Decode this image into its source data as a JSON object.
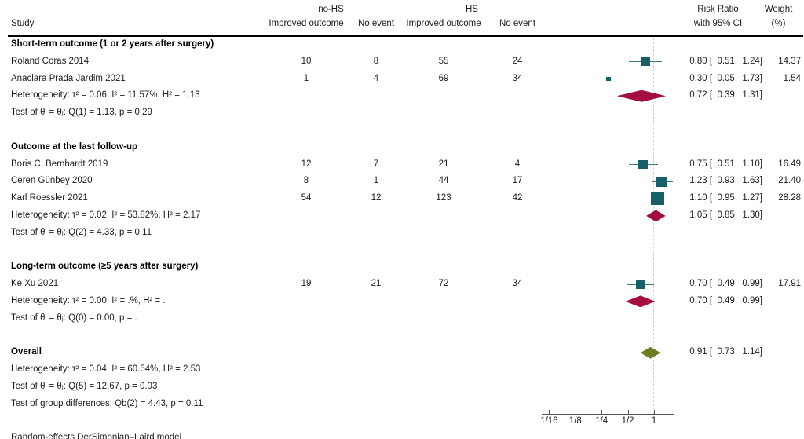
{
  "header": {
    "study": "Study",
    "group1": "no-HS",
    "group2": "HS",
    "col_improved_1": "Improved outcome",
    "col_noevent_1": "No event",
    "col_improved_2": "Improved outcome",
    "col_noevent_2": "No event",
    "rr_line1": "Risk Ratio",
    "rr_line2": "with 95% CI",
    "weight_line1": "Weight",
    "weight_line2": "(%)"
  },
  "rows": [
    {
      "kind": "group",
      "study": "Short-term outcome (1 or 2 years after surgery)",
      "c1": "",
      "c2": "",
      "c3": "",
      "c4": "",
      "rr": "",
      "wt": ""
    },
    {
      "kind": "study",
      "study": "Roland Coras 2014",
      "c1": "10",
      "c2": "8",
      "c3": "55",
      "c4": "24",
      "rr": "0.80 [  0.51,  1.24]",
      "wt": "14.37"
    },
    {
      "kind": "study",
      "study": "Anaclara Prada Jardim 2021",
      "c1": "1",
      "c2": "4",
      "c3": "69",
      "c4": "34",
      "rr": "0.30 [  0.05,  1.73]",
      "wt": "1.54"
    },
    {
      "kind": "stat",
      "study": "Heterogeneity: τ² = 0.06, I² = 11.57%, H² = 1.13",
      "c1": "",
      "c2": "",
      "c3": "",
      "c4": "",
      "rr": "0.72 [  0.39,  1.31]",
      "wt": ""
    },
    {
      "kind": "stat",
      "study": "Test of θᵢ = θⱼ: Q(1) = 1.13, p = 0.29",
      "c1": "",
      "c2": "",
      "c3": "",
      "c4": "",
      "rr": "",
      "wt": ""
    },
    {
      "kind": "blank",
      "study": "",
      "c1": "",
      "c2": "",
      "c3": "",
      "c4": "",
      "rr": "",
      "wt": ""
    },
    {
      "kind": "group",
      "study": "Outcome at the last follow-up",
      "c1": "",
      "c2": "",
      "c3": "",
      "c4": "",
      "rr": "",
      "wt": ""
    },
    {
      "kind": "study",
      "study": "Boris C. Bernhardt 2019",
      "c1": "12",
      "c2": "7",
      "c3": "21",
      "c4": "4",
      "rr": "0.75 [  0.51,  1.10]",
      "wt": "16.49"
    },
    {
      "kind": "study",
      "study": "Ceren Günbey 2020",
      "c1": "8",
      "c2": "1",
      "c3": "44",
      "c4": "17",
      "rr": "1.23 [  0.93,  1.63]",
      "wt": "21.40"
    },
    {
      "kind": "study",
      "study": "Karl Roessler 2021",
      "c1": "54",
      "c2": "12",
      "c3": "123",
      "c4": "42",
      "rr": "1.10 [  0.95,  1.27]",
      "wt": "28.28"
    },
    {
      "kind": "stat",
      "study": "Heterogeneity: τ² = 0.02, I² = 53.82%, H² = 2.17",
      "c1": "",
      "c2": "",
      "c3": "",
      "c4": "",
      "rr": "1.05 [  0.85,  1.30]",
      "wt": ""
    },
    {
      "kind": "stat",
      "study": "Test of θᵢ = θⱼ: Q(2) = 4.33, p = 0.11",
      "c1": "",
      "c2": "",
      "c3": "",
      "c4": "",
      "rr": "",
      "wt": ""
    },
    {
      "kind": "blank",
      "study": "",
      "c1": "",
      "c2": "",
      "c3": "",
      "c4": "",
      "rr": "",
      "wt": ""
    },
    {
      "kind": "group",
      "study": "Long-term outcome (≥5 years after surgery)",
      "c1": "",
      "c2": "",
      "c3": "",
      "c4": "",
      "rr": "",
      "wt": ""
    },
    {
      "kind": "study",
      "study": "Ke Xu 2021",
      "c1": "19",
      "c2": "21",
      "c3": "72",
      "c4": "34",
      "rr": "0.70 [  0.49,  0.99]",
      "wt": "17.91"
    },
    {
      "kind": "stat",
      "study": "Heterogeneity: τ² = 0.00, I² = .%, H² = .",
      "c1": "",
      "c2": "",
      "c3": "",
      "c4": "",
      "rr": "0.70 [  0.49,  0.99]",
      "wt": ""
    },
    {
      "kind": "stat",
      "study": "Test of θᵢ = θⱼ: Q(0) = 0.00, p = .",
      "c1": "",
      "c2": "",
      "c3": "",
      "c4": "",
      "rr": "",
      "wt": ""
    },
    {
      "kind": "blank",
      "study": "",
      "c1": "",
      "c2": "",
      "c3": "",
      "c4": "",
      "rr": "",
      "wt": ""
    },
    {
      "kind": "group",
      "study": "Overall",
      "c1": "",
      "c2": "",
      "c3": "",
      "c4": "",
      "rr": "0.91 [  0.73,  1.14]",
      "wt": ""
    },
    {
      "kind": "stat",
      "study": "Heterogeneity: τ² = 0.04, I² = 60.54%, H² = 2.53",
      "c1": "",
      "c2": "",
      "c3": "",
      "c4": "",
      "rr": "",
      "wt": ""
    },
    {
      "kind": "stat",
      "study": "Test of θᵢ = θⱼ: Q(5) = 12.67, p = 0.03",
      "c1": "",
      "c2": "",
      "c3": "",
      "c4": "",
      "rr": "",
      "wt": ""
    },
    {
      "kind": "stat",
      "study": "Test of group differences: Qb(2) = 4.43, p = 0.11",
      "c1": "",
      "c2": "",
      "c3": "",
      "c4": "",
      "rr": "",
      "wt": ""
    }
  ],
  "footer": "Random-effects DerSimonian–Laird model",
  "chart_data": {
    "type": "forest",
    "effect_measure": "Risk Ratio with 95% CI",
    "x_scale": "log2",
    "ref_line": 1,
    "x_ticks": {
      "labels": [
        "1/16",
        "1/8",
        "1/4",
        "1/2",
        "1"
      ],
      "values": [
        0.0625,
        0.125,
        0.25,
        0.5,
        1
      ]
    },
    "studies": [
      {
        "name": "Roland Coras 2014",
        "subgroup": "Short-term outcome (1 or 2 years after surgery)",
        "row": 1,
        "noHS_improved": 10,
        "noHS_noevent": 8,
        "HS_improved": 55,
        "HS_noevent": 24,
        "est": 0.8,
        "lo": 0.51,
        "hi": 1.24,
        "weight": 14.37
      },
      {
        "name": "Anaclara Prada Jardim 2021",
        "subgroup": "Short-term outcome (1 or 2 years after surgery)",
        "row": 2,
        "noHS_improved": 1,
        "noHS_noevent": 4,
        "HS_improved": 69,
        "HS_noevent": 34,
        "est": 0.3,
        "lo": 0.05,
        "hi": 1.73,
        "weight": 1.54
      },
      {
        "name": "Boris C. Bernhardt 2019",
        "subgroup": "Outcome at the last follow-up",
        "row": 7,
        "noHS_improved": 12,
        "noHS_noevent": 7,
        "HS_improved": 21,
        "HS_noevent": 4,
        "est": 0.75,
        "lo": 0.51,
        "hi": 1.1,
        "weight": 16.49
      },
      {
        "name": "Ceren Günbey 2020",
        "subgroup": "Outcome at the last follow-up",
        "row": 8,
        "noHS_improved": 8,
        "noHS_noevent": 1,
        "HS_improved": 44,
        "HS_noevent": 17,
        "est": 1.23,
        "lo": 0.93,
        "hi": 1.63,
        "weight": 21.4
      },
      {
        "name": "Karl Roessler 2021",
        "subgroup": "Outcome at the last follow-up",
        "row": 9,
        "noHS_improved": 54,
        "noHS_noevent": 12,
        "HS_improved": 123,
        "HS_noevent": 42,
        "est": 1.1,
        "lo": 0.95,
        "hi": 1.27,
        "weight": 28.28
      },
      {
        "name": "Ke Xu 2021",
        "subgroup": "Long-term outcome (≥5 years after surgery)",
        "row": 14,
        "noHS_improved": 19,
        "noHS_noevent": 21,
        "HS_improved": 72,
        "HS_noevent": 34,
        "est": 0.7,
        "lo": 0.49,
        "hi": 0.99,
        "weight": 17.91
      }
    ],
    "diamonds": [
      {
        "label": "Short-term subtotal",
        "row": 3,
        "est": 0.72,
        "lo": 0.39,
        "hi": 1.31,
        "color": "crimson"
      },
      {
        "label": "Last follow-up subtotal",
        "row": 10,
        "est": 1.05,
        "lo": 0.85,
        "hi": 1.3,
        "color": "crimson"
      },
      {
        "label": "Long-term subtotal",
        "row": 15,
        "est": 0.7,
        "lo": 0.49,
        "hi": 0.99,
        "color": "crimson"
      },
      {
        "label": "Overall",
        "row": 18,
        "est": 0.91,
        "lo": 0.73,
        "hi": 1.14,
        "color": "olive"
      }
    ],
    "colors": {
      "square": "#17606a",
      "ci": "#417683",
      "crimson": "#a30e3f",
      "olive": "#6e7c1e",
      "ref": "#bdd5ea",
      "axis": "#555555"
    },
    "layout": {
      "legend": false,
      "grid": false,
      "ref_line_style": "dashed"
    }
  }
}
